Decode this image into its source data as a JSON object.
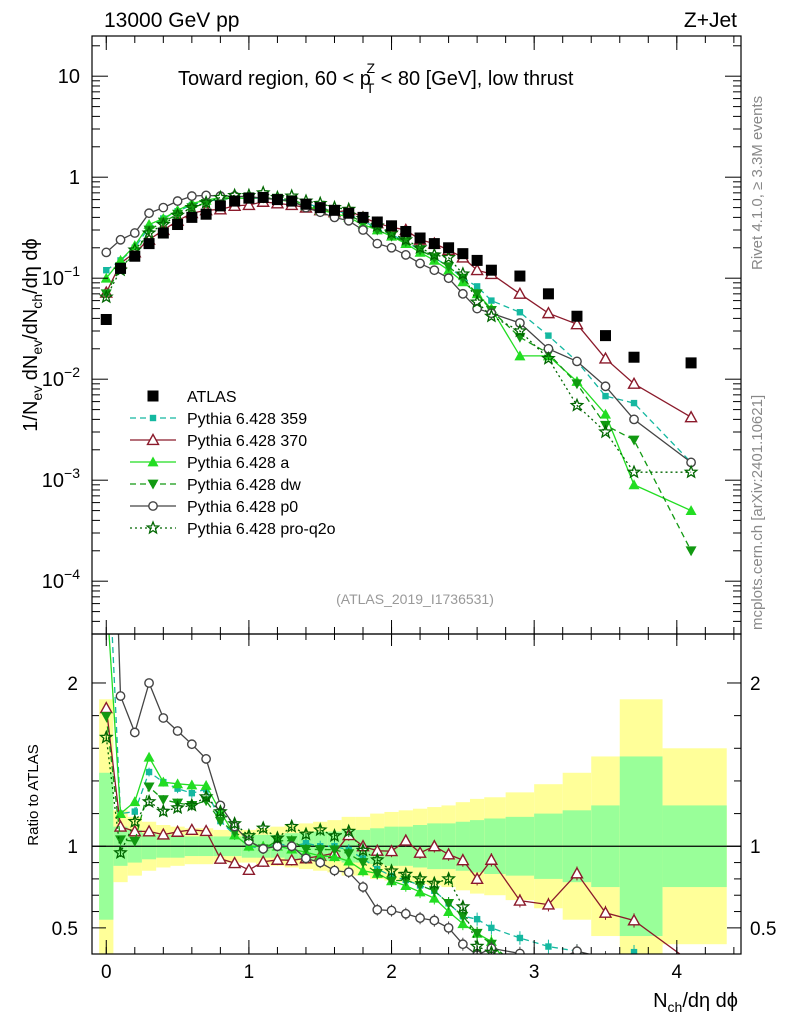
{
  "header": {
    "left": "13000 GeV pp",
    "right": "Z+Jet",
    "side_rivet": "Rivet 4.1.0, ≥ 3.3M events",
    "side_mcplots": "mcplots.cern.ch [arXiv:2401.10621]",
    "analysis_id": "(ATLAS_2019_I1736531)"
  },
  "chart_data": {
    "type": "scatter",
    "title_parts": {
      "pre": "Toward region, 60 < p",
      "sup": "Z",
      "sub": "T",
      "post": " < 80 [GeV], low thrust"
    },
    "xlabel": "N_ch/dη dϕ",
    "ylabel": "1/N_ev dN_ev/dN_ch/dη dϕ",
    "ratio_ylabel": "Ratio to ATLAS",
    "xlim": [
      -0.1,
      4.45
    ],
    "ylim": [
      3e-05,
      25
    ],
    "yscale": "log",
    "ratio_ylim": [
      0.34,
      2.3
    ],
    "x_ticks": [
      "0",
      "1",
      "2",
      "3",
      "4"
    ],
    "y_ticks": [
      "10^-4",
      "10^-3",
      "10^-2",
      "10^-1",
      "1",
      "10"
    ],
    "ratio_y_ticks": [
      "0.5",
      "1",
      "2"
    ],
    "x": [
      0,
      0.1,
      0.2,
      0.3,
      0.4,
      0.5,
      0.6,
      0.7,
      0.8,
      0.9,
      1.0,
      1.1,
      1.2,
      1.3,
      1.4,
      1.5,
      1.6,
      1.7,
      1.8,
      1.9,
      2.0,
      2.1,
      2.2,
      2.3,
      2.4,
      2.5,
      2.6,
      2.7,
      2.9,
      3.1,
      3.3,
      3.5,
      3.7,
      4.1
    ],
    "atlas": [
      0.039,
      0.125,
      0.165,
      0.22,
      0.28,
      0.34,
      0.4,
      0.43,
      0.52,
      0.58,
      0.62,
      0.63,
      0.6,
      0.58,
      0.54,
      0.5,
      0.47,
      0.44,
      0.4,
      0.36,
      0.33,
      0.29,
      0.25,
      0.22,
      0.2,
      0.175,
      0.15,
      0.12,
      0.105,
      0.07,
      0.042,
      0.027,
      0.0165,
      0.0145
    ],
    "band_inner": [
      0.45,
      0.12,
      0.1,
      0.08,
      0.07,
      0.07,
      0.06,
      0.06,
      0.06,
      0.06,
      0.07,
      0.07,
      0.07,
      0.08,
      0.08,
      0.09,
      0.09,
      0.1,
      0.1,
      0.11,
      0.12,
      0.12,
      0.13,
      0.14,
      0.14,
      0.15,
      0.16,
      0.17,
      0.18,
      0.2,
      0.22,
      0.25,
      0.55,
      0.25
    ],
    "band_outer": [
      0.9,
      0.22,
      0.18,
      0.15,
      0.13,
      0.12,
      0.11,
      0.11,
      0.1,
      0.1,
      0.1,
      0.11,
      0.12,
      0.13,
      0.14,
      0.15,
      0.16,
      0.18,
      0.18,
      0.2,
      0.21,
      0.22,
      0.23,
      0.24,
      0.25,
      0.27,
      0.29,
      0.3,
      0.33,
      0.38,
      0.45,
      0.55,
      0.9,
      0.6
    ],
    "series": [
      {
        "name": "Pythia 6.428 359",
        "color": "#14b8a0",
        "dash": "6,4",
        "marker": "square",
        "values": [
          0.12,
          0.15,
          0.2,
          0.32,
          0.39,
          0.46,
          0.53,
          0.58,
          0.6,
          0.62,
          0.62,
          0.62,
          0.61,
          0.58,
          0.55,
          0.5,
          0.47,
          0.43,
          0.37,
          0.31,
          0.27,
          0.23,
          0.19,
          0.16,
          0.13,
          0.1,
          0.083,
          0.06,
          0.046,
          0.027,
          0.015,
          0.0068,
          0.0058,
          0.0015
        ]
      },
      {
        "name": "Pythia 6.428 370",
        "color": "#8b1a2b",
        "dash": "",
        "marker": "open-triangle",
        "values": [
          0.072,
          0.14,
          0.18,
          0.24,
          0.3,
          0.37,
          0.44,
          0.47,
          0.48,
          0.52,
          0.53,
          0.57,
          0.55,
          0.53,
          0.5,
          0.47,
          0.45,
          0.47,
          0.4,
          0.35,
          0.32,
          0.3,
          0.24,
          0.22,
          0.19,
          0.16,
          0.12,
          0.11,
          0.07,
          0.045,
          0.035,
          0.016,
          0.009,
          0.0042
        ]
      },
      {
        "name": "Pythia 6.428 a",
        "color": "#22dd22",
        "dash": "",
        "marker": "triangle",
        "values": [
          0.1,
          0.15,
          0.21,
          0.34,
          0.39,
          0.47,
          0.55,
          0.59,
          0.63,
          0.62,
          0.62,
          0.63,
          0.6,
          0.57,
          0.52,
          0.47,
          0.44,
          0.4,
          0.34,
          0.3,
          0.26,
          0.22,
          0.18,
          0.15,
          0.12,
          0.092,
          0.07,
          0.05,
          0.017,
          0.017,
          0.0095,
          0.0045,
          0.0009,
          0.0005
        ]
      },
      {
        "name": "Pythia 6.428 dw",
        "color": "#119911",
        "dash": "6,4",
        "marker": "triangle-down",
        "values": [
          0.07,
          0.13,
          0.17,
          0.3,
          0.36,
          0.43,
          0.5,
          0.55,
          0.6,
          0.63,
          0.64,
          0.62,
          0.62,
          0.6,
          0.53,
          0.49,
          0.46,
          0.42,
          0.36,
          0.3,
          0.26,
          0.23,
          0.19,
          0.16,
          0.13,
          0.1,
          0.07,
          0.048,
          0.026,
          0.018,
          0.009,
          0.0035,
          0.0025,
          0.0002
        ]
      },
      {
        "name": "Pythia 6.428 p0",
        "color": "#444444",
        "dash": "",
        "marker": "open-circle",
        "values": [
          0.18,
          0.24,
          0.28,
          0.44,
          0.5,
          0.58,
          0.65,
          0.66,
          0.65,
          0.65,
          0.64,
          0.62,
          0.6,
          0.58,
          0.5,
          0.45,
          0.4,
          0.37,
          0.3,
          0.22,
          0.2,
          0.17,
          0.14,
          0.12,
          0.1,
          0.07,
          0.05,
          0.045,
          0.036,
          0.02,
          0.015,
          0.0085,
          0.004,
          0.0015
        ]
      },
      {
        "name": "Pythia 6.428 pro-q2o",
        "color": "#006600",
        "dash": "2,3",
        "marker": "star",
        "values": [
          0.065,
          0.12,
          0.19,
          0.28,
          0.34,
          0.42,
          0.5,
          0.56,
          0.63,
          0.66,
          0.66,
          0.7,
          0.63,
          0.65,
          0.58,
          0.55,
          0.5,
          0.48,
          0.39,
          0.33,
          0.28,
          0.24,
          0.2,
          0.17,
          0.16,
          0.11,
          0.058,
          0.042,
          0.03,
          0.016,
          0.0055,
          0.003,
          0.0012,
          0.0012
        ]
      }
    ]
  }
}
